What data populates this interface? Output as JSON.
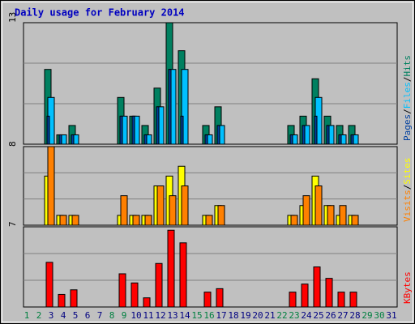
{
  "title": "Daily usage for February 2014",
  "categories": [
    "1",
    "2",
    "3",
    "4",
    "5",
    "6",
    "7",
    "8",
    "9",
    "10",
    "11",
    "12",
    "13",
    "14",
    "15",
    "16",
    "17",
    "18",
    "19",
    "20",
    "21",
    "22",
    "23",
    "24",
    "25",
    "26",
    "27",
    "28",
    "29",
    "30",
    "31"
  ],
  "category_colors": [
    "#008040",
    "#008040",
    "#000080",
    "#000080",
    "#000080",
    "#000080",
    "#000080",
    "#008040",
    "#008040",
    "#000080",
    "#000080",
    "#000080",
    "#000080",
    "#000080",
    "#008040",
    "#008040",
    "#000080",
    "#000080",
    "#000080",
    "#000080",
    "#000080",
    "#008040",
    "#008040",
    "#000080",
    "#000080",
    "#000080",
    "#000080",
    "#000080",
    "#008040",
    "#008040",
    "#000080"
  ],
  "chart_data": [
    {
      "type": "bar",
      "ylim": [
        0,
        13
      ],
      "yticks": [
        13
      ],
      "grid": true,
      "series": [
        {
          "name": "Hits",
          "color": "#008060",
          "values": [
            0,
            8,
            1,
            2,
            0,
            0,
            0,
            5,
            3,
            2,
            6,
            13,
            10,
            0,
            2,
            4,
            0,
            0,
            0,
            0,
            0,
            2,
            3,
            7,
            3,
            2,
            2,
            0,
            0,
            0,
            0
          ]
        },
        {
          "name": "Files",
          "color": "#00c0ff",
          "values": [
            0,
            5,
            1,
            1,
            0,
            0,
            0,
            3,
            3,
            1,
            4,
            8,
            8,
            0,
            1,
            2,
            0,
            0,
            0,
            0,
            0,
            1,
            2,
            5,
            2,
            1,
            1,
            0,
            0,
            0,
            0
          ]
        },
        {
          "name": "Pages",
          "color": "#0040a0",
          "values": [
            0,
            3,
            1,
            1,
            0,
            0,
            0,
            3,
            3,
            1,
            4,
            8,
            3,
            0,
            1,
            2,
            0,
            0,
            0,
            0,
            0,
            1,
            2,
            3,
            2,
            1,
            1,
            0,
            0,
            0,
            0
          ]
        }
      ]
    },
    {
      "type": "bar",
      "ylim": [
        0,
        8
      ],
      "yticks": [
        8
      ],
      "grid": true,
      "series": [
        {
          "name": "Sites",
          "color": "#ffff00",
          "values": [
            0,
            5,
            1,
            1,
            0,
            0,
            0,
            1,
            1,
            1,
            4,
            5,
            6,
            0,
            1,
            2,
            0,
            0,
            0,
            0,
            0,
            1,
            2,
            5,
            2,
            1,
            1,
            0,
            0,
            0,
            0
          ]
        },
        {
          "name": "Visits",
          "color": "#ff8000",
          "values": [
            0,
            8,
            1,
            1,
            0,
            0,
            0,
            3,
            1,
            1,
            4,
            3,
            4,
            0,
            1,
            2,
            0,
            0,
            0,
            0,
            0,
            1,
            3,
            4,
            2,
            2,
            1,
            0,
            0,
            0,
            0
          ]
        }
      ]
    },
    {
      "type": "bar",
      "ylim": [
        0,
        7
      ],
      "yticks": [
        7
      ],
      "grid": true,
      "series": [
        {
          "name": "KBytes",
          "color": "#ff0000",
          "values": [
            0,
            3.9,
            1.1,
            1.5,
            0,
            0,
            0,
            2.9,
            2.1,
            0.8,
            3.8,
            6.7,
            5.6,
            0,
            1.3,
            1.6,
            0,
            0,
            0,
            0,
            0,
            1.3,
            2,
            3.5,
            2.5,
            1.3,
            1.3,
            0,
            0,
            0,
            0
          ]
        }
      ]
    }
  ]
}
